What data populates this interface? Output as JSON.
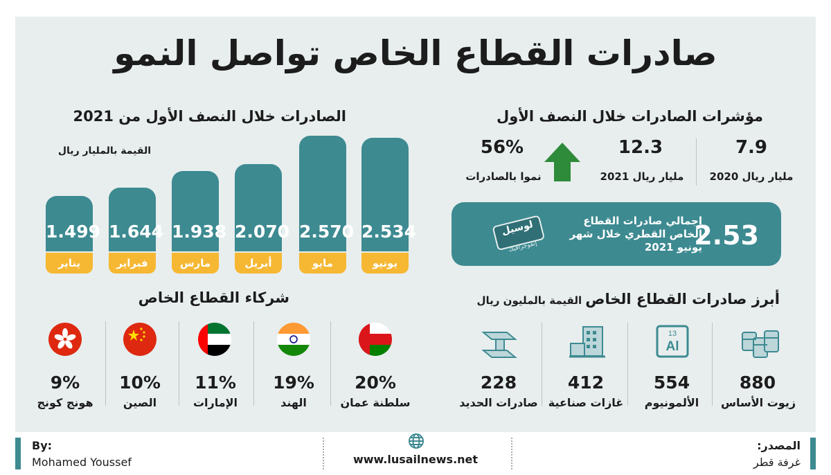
{
  "title": "صادرات القطاع الخاص تواصل النمو",
  "indicators": {
    "title": "مؤشرات الصادرات خلال النصف الأول",
    "items": [
      {
        "value": "7.9",
        "label": "مليار ريال 2020"
      },
      {
        "value": "12.3",
        "label": "مليار ريال 2021"
      },
      {
        "value": "56%",
        "label": "نموا بالصادرات"
      }
    ],
    "arrow_color": "#2e8b3a"
  },
  "total": {
    "value": "2.53",
    "text": "إجمالي صادرات القطاع الخاص القطري خلال شهر يونيو 2021",
    "stamp_main": "لوسيل",
    "stamp_sub": "إنفوجرافيك"
  },
  "chart_title": "الصادرات خلال النصف الأول من 2021",
  "chart_data": {
    "type": "bar",
    "ylabel": "القيمة بالمليار ريال",
    "categories": [
      "يناير",
      "فبراير",
      "مارس",
      "أبريل",
      "مايو",
      "يونيو"
    ],
    "values": [
      1.499,
      1.644,
      1.938,
      2.07,
      2.57,
      2.534
    ],
    "value_labels": [
      "1.499",
      "1.644",
      "1.938",
      "2.070",
      "2.570",
      "2.534"
    ],
    "bar_color": "#3d8a91",
    "category_color": "#f6b732"
  },
  "products": {
    "title": "أبرز صادرات القطاع الخاص",
    "subtitle": "القيمة بالمليون ريال",
    "items": [
      {
        "value": "880",
        "label": "زيوت الأساس",
        "icon": "barrels-icon"
      },
      {
        "value": "554",
        "label": "الألمونيوم",
        "icon": "aluminum-element-icon",
        "icon_number": "13",
        "icon_symbol": "Al"
      },
      {
        "value": "412",
        "label": "غازات صناعية",
        "icon": "factory-icon"
      },
      {
        "value": "228",
        "label": "صادرات الحديد",
        "icon": "steel-beam-icon"
      }
    ]
  },
  "partners": {
    "title": "شركاء القطاع الخاص",
    "items": [
      {
        "pct": "20%",
        "country": "سلطنة عمان",
        "flag": "oman-flag-icon"
      },
      {
        "pct": "19%",
        "country": "الهند",
        "flag": "india-flag-icon"
      },
      {
        "pct": "11%",
        "country": "الإمارات",
        "flag": "uae-flag-icon"
      },
      {
        "pct": "10%",
        "country": "الصين",
        "flag": "china-flag-icon"
      },
      {
        "pct": "9%",
        "country": "هونج كونج",
        "flag": "hongkong-flag-icon"
      }
    ]
  },
  "footer": {
    "source_label": "المصدر:",
    "source_value": "غرفة قطر",
    "website": "www.lusailnews.net",
    "by_label": "By:",
    "author": "Mohamed Youssef"
  }
}
